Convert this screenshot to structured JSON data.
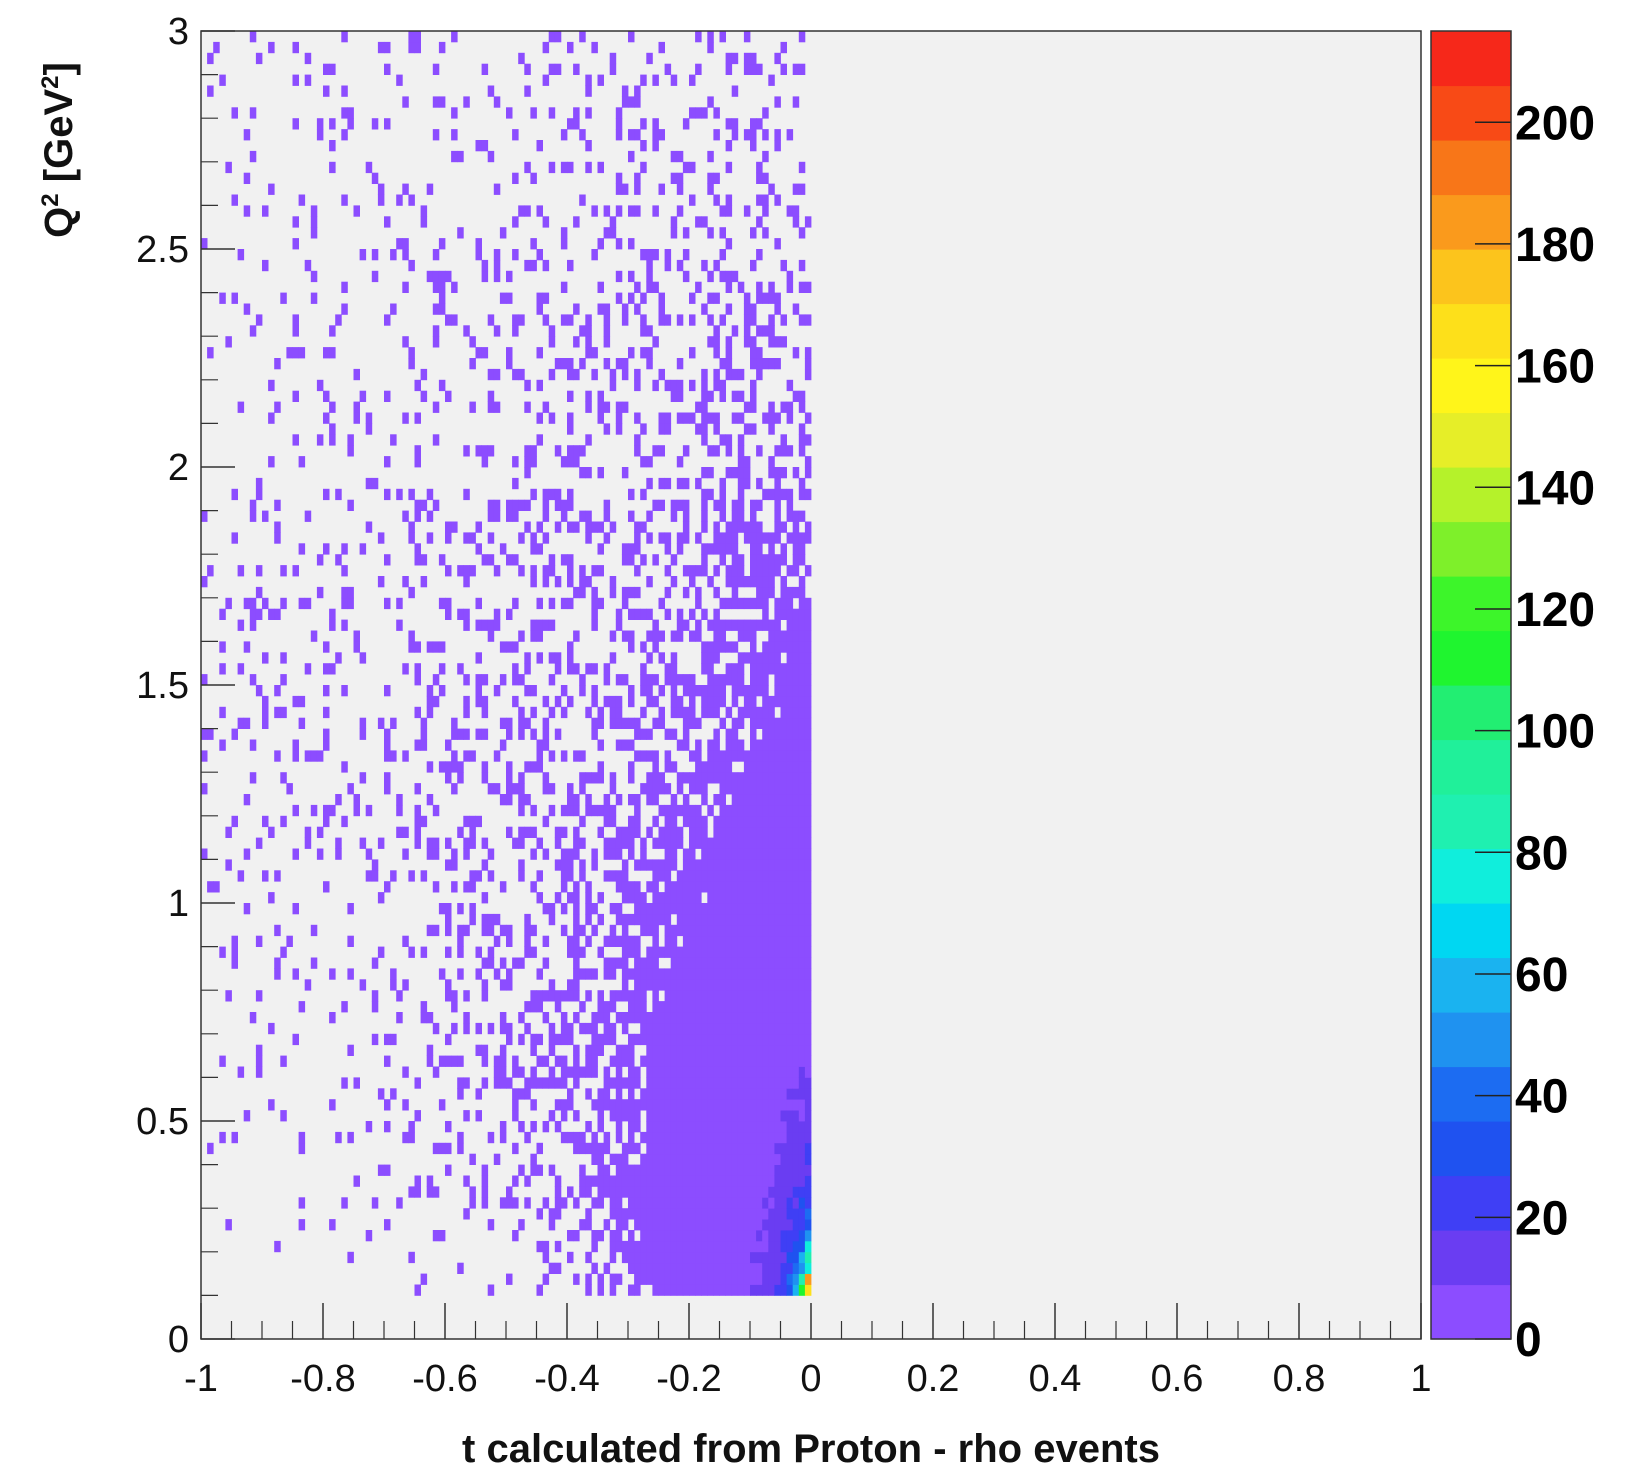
{
  "chart_data": {
    "type": "heatmap",
    "title": "",
    "xlabel": "t calculated from Proton - rho events",
    "ylabel_base": "Q",
    "ylabel_sup": "2",
    "ylabel_unit_open": " [GeV",
    "ylabel_unit_sup": "2",
    "ylabel_unit_close": "]",
    "xlim": [
      -1,
      1
    ],
    "ylim": [
      0,
      3
    ],
    "zlim": [
      0,
      215
    ],
    "x_ticks": [
      -1,
      -0.8,
      -0.6,
      -0.4,
      -0.2,
      0,
      0.2,
      0.4,
      0.6,
      0.8,
      1
    ],
    "x_tick_labels": [
      "-1",
      "-0.8",
      "-0.6",
      "-0.4",
      "-0.2",
      "0",
      "0.2",
      "0.4",
      "0.6",
      "0.8",
      "1"
    ],
    "y_ticks": [
      0,
      0.5,
      1,
      1.5,
      2,
      2.5,
      3
    ],
    "y_tick_labels": [
      "0",
      "0.5",
      "1",
      "1.5",
      "2",
      "2.5",
      "3"
    ],
    "z_ticks": [
      0,
      20,
      40,
      60,
      80,
      100,
      120,
      140,
      160,
      180,
      200
    ],
    "z_tick_labels": [
      "0",
      "20",
      "40",
      "60",
      "80",
      "100",
      "120",
      "140",
      "160",
      "180",
      "200"
    ],
    "colorbar_colors": [
      "#8c4dff",
      "#6a3df2",
      "#3f3ff5",
      "#1f52f0",
      "#1c6cf2",
      "#1f92f0",
      "#1ab3f0",
      "#00d7f2",
      "#10eedc",
      "#1ff0b0",
      "#20f09a",
      "#22ee72",
      "#1ff52f",
      "#3df52a",
      "#7ef02a",
      "#b5f22a",
      "#e6ee28",
      "#fff51a",
      "#fde01a",
      "#fcc41c",
      "#fa9a1c",
      "#f87618",
      "#f84a16",
      "#f6281a"
    ],
    "background_color": "#f1f1f1",
    "grid": false,
    "legend": "colorbar right",
    "bin_size": {
      "t": 0.01,
      "Q2": 0.025
    },
    "populated_region": {
      "t": [
        -1.0,
        0.0
      ],
      "Q2": [
        0.1,
        3.0
      ]
    },
    "description_of_counts": [
      {
        "t_range": [
          -0.02,
          0.0
        ],
        "Q2_range": [
          0.1,
          0.15
        ],
        "count_range": [
          150,
          215
        ]
      },
      {
        "t_range": [
          -0.08,
          0.0
        ],
        "Q2_range": [
          0.1,
          0.3
        ],
        "count_range": [
          40,
          110
        ]
      },
      {
        "t_range": [
          -0.2,
          0.0
        ],
        "Q2_range": [
          0.1,
          0.6
        ],
        "count_range": [
          10,
          40
        ]
      },
      {
        "t_range": [
          -0.35,
          0.0
        ],
        "Q2_range": [
          0.1,
          1.0
        ],
        "count_range": [
          1,
          10
        ]
      },
      {
        "t_range": [
          -1.0,
          0.0
        ],
        "Q2_range": [
          0.1,
          3.0
        ],
        "count_range": [
          0,
          2
        ]
      }
    ]
  }
}
